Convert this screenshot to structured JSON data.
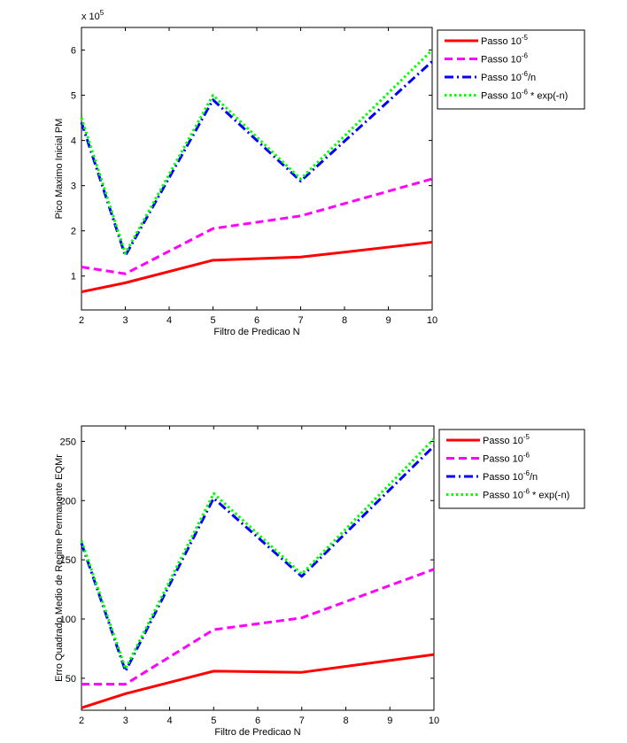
{
  "chart_data": [
    {
      "type": "line",
      "title": "",
      "xlabel": "Filtro de Predicao N",
      "ylabel": "Pico Maximo Inicial PM",
      "y_exponent_label": "x 10",
      "y_exponent": "5",
      "xlim": [
        2,
        10
      ],
      "ylim": [
        0.25,
        6.5
      ],
      "xticks": [
        2,
        3,
        4,
        5,
        6,
        7,
        8,
        9,
        10
      ],
      "yticks": [
        1,
        2,
        3,
        4,
        5,
        6
      ],
      "x": [
        2,
        3,
        5,
        7,
        10
      ],
      "legend_position": "outside-top-right",
      "grid": false,
      "series": [
        {
          "name": "Passo 10",
          "sup": "-5",
          "suffix": "",
          "color": "#ff0000",
          "style": "solid",
          "values": [
            0.65,
            0.85,
            1.35,
            1.42,
            1.75
          ]
        },
        {
          "name": "Passo 10",
          "sup": "-6",
          "suffix": "",
          "color": "#ff00ff",
          "style": "dash",
          "values": [
            1.2,
            1.05,
            2.05,
            2.33,
            3.15
          ]
        },
        {
          "name": "Passo 10",
          "sup": "-6",
          "suffix": "/n",
          "color": "#0000ff",
          "style": "dashdot",
          "values": [
            4.4,
            1.45,
            4.9,
            3.1,
            5.75
          ]
        },
        {
          "name": "Passo 10",
          "sup": "-6",
          "suffix": " * exp(-n)",
          "color": "#00ff00",
          "style": "dot",
          "values": [
            4.5,
            1.5,
            5.0,
            3.15,
            6.0
          ]
        }
      ]
    },
    {
      "type": "line",
      "title": "",
      "xlabel": "Filtro de Predicao N",
      "ylabel": "Erro Quadrado Medio de Regime Permanente EQMr",
      "xlim": [
        2,
        10
      ],
      "ylim": [
        23,
        263
      ],
      "xticks": [
        2,
        3,
        4,
        5,
        6,
        7,
        8,
        9,
        10
      ],
      "yticks": [
        50,
        100,
        150,
        200,
        250
      ],
      "x": [
        2,
        3,
        5,
        7,
        10
      ],
      "legend_position": "outside-top-right",
      "grid": false,
      "series": [
        {
          "name": "Passo 10",
          "sup": "-5",
          "suffix": "",
          "color": "#ff0000",
          "style": "solid",
          "values": [
            25,
            37,
            56,
            55,
            70
          ]
        },
        {
          "name": "Passo 10",
          "sup": "-6",
          "suffix": "",
          "color": "#ff00ff",
          "style": "dash",
          "values": [
            45,
            45,
            91,
            101,
            142
          ]
        },
        {
          "name": "Passo 10",
          "sup": "-6",
          "suffix": "/n",
          "color": "#0000ff",
          "style": "dashdot",
          "values": [
            164,
            56,
            202,
            136,
            246
          ]
        },
        {
          "name": "Passo 10",
          "sup": "-6",
          "suffix": " * exp(-n)",
          "color": "#00ff00",
          "style": "dot",
          "values": [
            166,
            58,
            206,
            138,
            252
          ]
        }
      ]
    }
  ]
}
